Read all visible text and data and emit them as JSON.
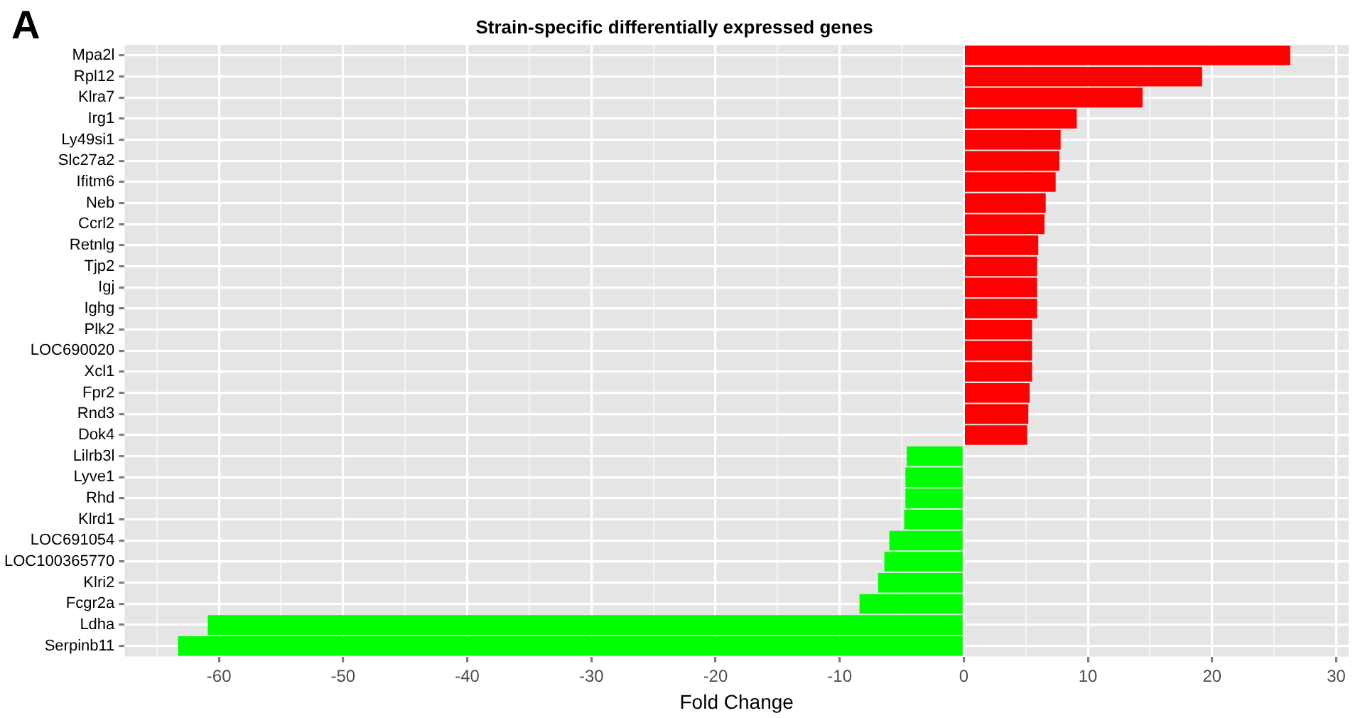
{
  "chart_data": {
    "type": "bar",
    "orientation": "horizontal",
    "title": "Strain-specific differentially expressed genes",
    "xlabel": "Fold Change",
    "annotations": [
      "A"
    ],
    "categories": [
      "Mpa2l",
      "Rpl12",
      "Klra7",
      "Irg1",
      "Ly49si1",
      "Slc27a2",
      "Ifitm6",
      "Neb",
      "Ccrl2",
      "Retnlg",
      "Tjp2",
      "Igj",
      "Ighg",
      "Plk2",
      "LOC690020",
      "Xcl1",
      "Fpr2",
      "Rnd3",
      "Dok4",
      "Lilrb3l",
      "Lyve1",
      "Rhd",
      "Klrd1",
      "LOC691054",
      "LOC100365770",
      "Klri2",
      "Fcgr2a",
      "Ldha",
      "Serpinb11"
    ],
    "values": [
      26.3,
      19.2,
      14.4,
      9.1,
      7.8,
      7.7,
      7.4,
      6.6,
      6.5,
      6.0,
      5.9,
      5.9,
      5.9,
      5.5,
      5.5,
      5.5,
      5.3,
      5.2,
      5.1,
      -4.6,
      -4.7,
      -4.7,
      -4.8,
      -6.0,
      -6.4,
      -6.9,
      -8.4,
      -60.9,
      -63.3
    ],
    "colors": [
      "#ff0000",
      "#ff0000",
      "#ff0000",
      "#ff0000",
      "#ff0000",
      "#ff0000",
      "#ff0000",
      "#ff0000",
      "#ff0000",
      "#ff0000",
      "#ff0000",
      "#ff0000",
      "#ff0000",
      "#ff0000",
      "#ff0000",
      "#ff0000",
      "#ff0000",
      "#ff0000",
      "#ff0000",
      "#00ff00",
      "#00ff00",
      "#00ff00",
      "#00ff00",
      "#00ff00",
      "#00ff00",
      "#00ff00",
      "#00ff00",
      "#00ff00",
      "#00ff00"
    ],
    "xlim": [
      -67.6,
      31
    ],
    "xticks": [
      {
        "value": -65,
        "label": null
      },
      -60,
      {
        "value": -55,
        "label": null
      },
      -50,
      {
        "value": -45,
        "label": null
      },
      -40,
      {
        "value": -35,
        "label": null
      },
      -30,
      {
        "value": -25,
        "label": null
      },
      -20,
      {
        "value": -15,
        "label": null
      },
      -10,
      {
        "value": -5,
        "label": null
      },
      0,
      {
        "value": 5,
        "label": null
      },
      10,
      {
        "value": 15,
        "label": null
      },
      20,
      {
        "value": 25,
        "label": null
      },
      30
    ],
    "grid": true,
    "legend": false
  }
}
